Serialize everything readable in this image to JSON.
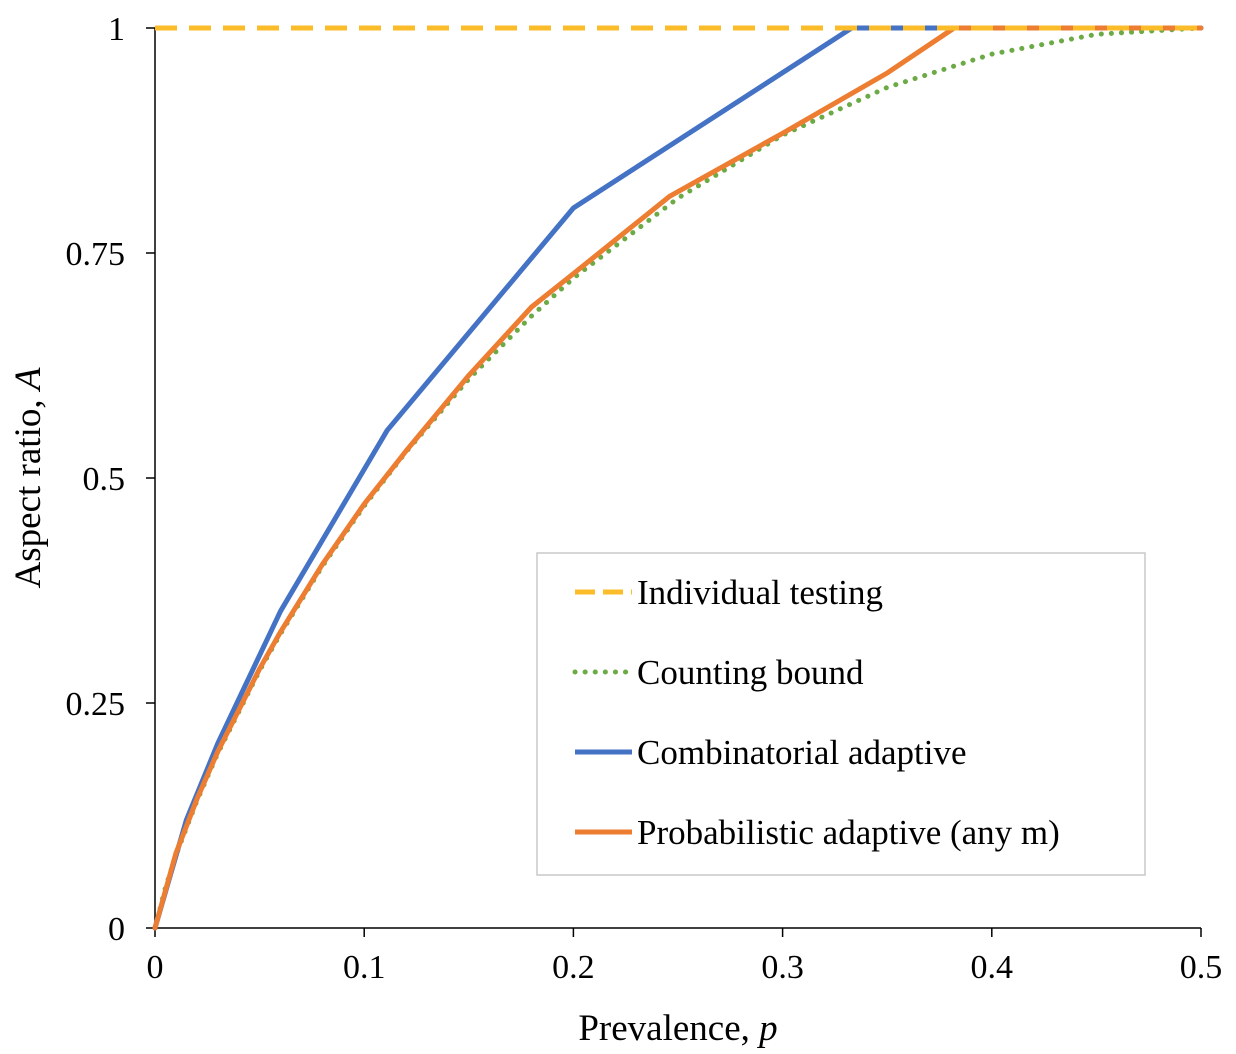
{
  "chart_data": {
    "type": "line",
    "title": "",
    "xlabel": "Prevalence, ",
    "xlabel_var": "p",
    "ylabel": "Aspect ratio, ",
    "ylabel_var": "A",
    "xlim": [
      0,
      0.5
    ],
    "ylim": [
      0,
      1
    ],
    "x_ticks": [
      0,
      0.1,
      0.2,
      0.3,
      0.4,
      0.5
    ],
    "x_tick_labels": [
      "0",
      "0.1",
      "0.2",
      "0.3",
      "0.4",
      "0.5"
    ],
    "y_ticks": [
      0,
      0.25,
      0.5,
      0.75,
      1
    ],
    "y_tick_labels": [
      "0",
      "0.25",
      "0.5",
      "0.75",
      "1"
    ],
    "grid": false,
    "legend_position": "bottom-right",
    "series": [
      {
        "name": "Individual testing",
        "color": "#FBBC2A",
        "style": "dashed",
        "x": [
          0,
          0.5
        ],
        "y": [
          1,
          1
        ]
      },
      {
        "name": "Counting bound",
        "color": "#6BAA44",
        "style": "dotted",
        "x": [
          0,
          0.005,
          0.01,
          0.02,
          0.03,
          0.05,
          0.06,
          0.08,
          0.1,
          0.12,
          0.15,
          0.18,
          0.2,
          0.25,
          0.3,
          0.35,
          0.4,
          0.45,
          0.5
        ],
        "y": [
          0,
          0.045,
          0.081,
          0.141,
          0.194,
          0.286,
          0.327,
          0.402,
          0.469,
          0.529,
          0.61,
          0.68,
          0.722,
          0.811,
          0.881,
          0.934,
          0.971,
          0.993,
          1
        ]
      },
      {
        "name": "Combinatorial adaptive",
        "color": "#4472C4",
        "style": "solid",
        "x": [
          0,
          0.015,
          0.03,
          0.06,
          0.111,
          0.2,
          0.333,
          0.5
        ],
        "y": [
          0,
          0.12,
          0.205,
          0.352,
          0.553,
          0.8,
          1,
          1
        ]
      },
      {
        "name": "Probabilistic adaptive (any m)",
        "color": "#ED7D31",
        "style": "solid",
        "x": [
          0,
          0.01,
          0.02,
          0.03,
          0.05,
          0.06,
          0.08,
          0.1,
          0.12,
          0.15,
          0.18,
          0.2,
          0.246,
          0.3,
          0.35,
          0.382,
          0.5
        ],
        "y": [
          0,
          0.083,
          0.143,
          0.196,
          0.288,
          0.329,
          0.404,
          0.471,
          0.53,
          0.614,
          0.69,
          0.727,
          0.813,
          0.883,
          0.95,
          1,
          1
        ]
      }
    ]
  }
}
